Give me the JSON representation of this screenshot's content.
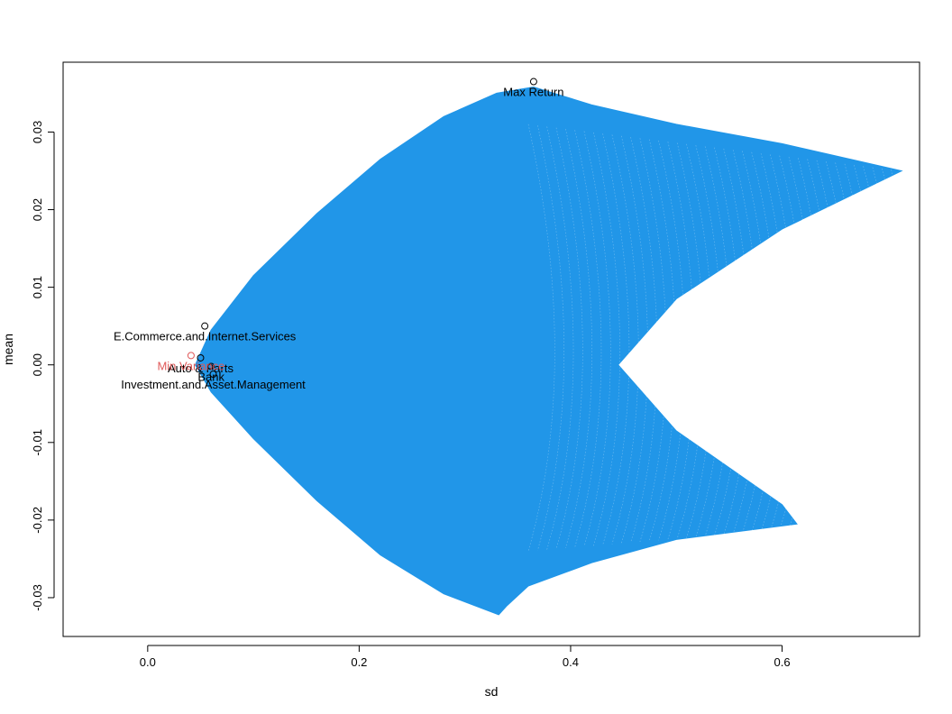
{
  "chart_data": {
    "type": "scatter",
    "title": "",
    "xlabel": "sd",
    "ylabel": "mean",
    "xlim": [
      -0.08,
      0.73
    ],
    "ylim": [
      -0.035,
      0.039
    ],
    "x_ticks": [
      "0.0",
      "0.2",
      "0.4",
      "0.6"
    ],
    "y_ticks": [
      "-0.03",
      "-0.02",
      "-0.01",
      "0.00",
      "0.01",
      "0.02",
      "0.03"
    ],
    "x_tick_values": [
      0.0,
      0.2,
      0.4,
      0.6
    ],
    "y_tick_values": [
      -0.03,
      -0.02,
      -0.01,
      0.0,
      0.01,
      0.02,
      0.03
    ],
    "grid": false,
    "colors": {
      "cloud": "#2196e8",
      "assets": "#000000",
      "min_variance": "#e05a5a"
    },
    "feasible_region_outline": [
      {
        "sd": 0.332,
        "mean": -0.0322
      },
      {
        "sd": 0.28,
        "mean": -0.0295
      },
      {
        "sd": 0.22,
        "mean": -0.0245
      },
      {
        "sd": 0.16,
        "mean": -0.0175
      },
      {
        "sd": 0.1,
        "mean": -0.0095
      },
      {
        "sd": 0.06,
        "mean": -0.0035
      },
      {
        "sd": 0.045,
        "mean": 0.0
      },
      {
        "sd": 0.06,
        "mean": 0.0045
      },
      {
        "sd": 0.1,
        "mean": 0.0115
      },
      {
        "sd": 0.16,
        "mean": 0.0195
      },
      {
        "sd": 0.22,
        "mean": 0.0265
      },
      {
        "sd": 0.28,
        "mean": 0.032
      },
      {
        "sd": 0.33,
        "mean": 0.035
      },
      {
        "sd": 0.365,
        "mean": 0.0358
      },
      {
        "sd": 0.42,
        "mean": 0.0335
      },
      {
        "sd": 0.5,
        "mean": 0.031
      },
      {
        "sd": 0.6,
        "mean": 0.0285
      },
      {
        "sd": 0.713,
        "mean": 0.025
      },
      {
        "sd": 0.6,
        "mean": 0.0175
      },
      {
        "sd": 0.5,
        "mean": 0.0085
      },
      {
        "sd": 0.445,
        "mean": 0.0
      },
      {
        "sd": 0.5,
        "mean": -0.0085
      },
      {
        "sd": 0.6,
        "mean": -0.018
      },
      {
        "sd": 0.614,
        "mean": -0.0205
      },
      {
        "sd": 0.5,
        "mean": -0.0225
      },
      {
        "sd": 0.42,
        "mean": -0.0255
      },
      {
        "sd": 0.36,
        "mean": -0.0285
      },
      {
        "sd": 0.34,
        "mean": -0.031
      }
    ],
    "points": [
      {
        "label": "Max Return",
        "sd": 0.365,
        "mean": 0.0365,
        "color": "#000000",
        "label_anchor": "below-center"
      },
      {
        "label": "E.Commerce.and.Internet.Services",
        "sd": 0.054,
        "mean": 0.005,
        "color": "#000000",
        "label_anchor": "below-center"
      },
      {
        "label": "Auto & Parts",
        "sd": 0.05,
        "mean": 0.0009,
        "color": "#000000",
        "label_anchor": "below-center"
      },
      {
        "label": "Bank",
        "sd": 0.06,
        "mean": -0.0002,
        "color": "#000000",
        "label_anchor": "below-center"
      },
      {
        "label": "Investment.and.Asset.Management",
        "sd": 0.062,
        "mean": -0.0012,
        "color": "#000000",
        "label_anchor": "below-center"
      },
      {
        "label": "Min Variance",
        "sd": 0.041,
        "mean": 0.0012,
        "color": "#e05a5a",
        "label_anchor": "below-center"
      }
    ]
  }
}
